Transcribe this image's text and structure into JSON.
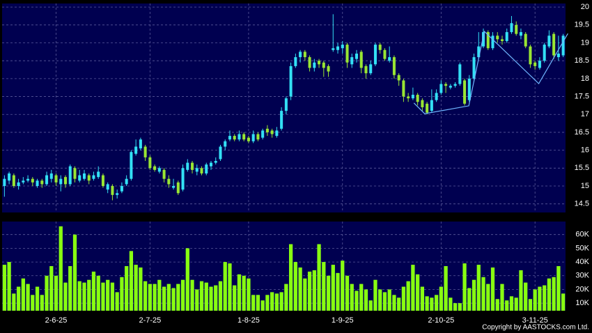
{
  "chart_data": [
    {
      "type": "candlestick",
      "open": [
        15.0,
        15.15,
        15.3,
        15.0,
        15.1,
        15.15,
        15.2,
        15.0,
        15.15,
        15.05,
        15.2,
        15.3,
        15.05,
        15.25,
        15.05,
        15.5,
        15.15,
        15.2,
        15.3,
        15.2,
        15.25,
        15.3,
        14.9,
        15.0,
        14.75,
        14.85,
        15.05,
        15.2,
        15.9,
        16.05,
        16.1,
        15.8,
        15.55,
        15.4,
        15.45,
        15.2,
        14.95,
        15.1,
        14.9,
        15.45,
        15.65,
        15.4,
        15.5,
        15.35,
        15.55,
        15.65,
        15.75,
        16.1,
        16.3,
        16.4,
        16.3,
        16.45,
        16.35,
        16.25,
        16.45,
        16.35,
        16.6,
        16.55,
        16.4,
        16.6,
        17.1,
        17.5,
        18.35,
        18.6,
        18.75,
        18.6,
        18.3,
        18.5,
        18.45,
        18.35,
        18.8,
        18.8,
        18.85,
        18.95,
        18.4,
        18.55,
        18.75,
        18.35,
        18.15,
        18.4,
        18.95,
        18.8,
        18.5,
        18.6,
        18.1,
        17.95,
        17.5,
        17.45,
        17.55,
        17.4,
        17.3,
        17.1,
        17.4,
        17.6,
        17.85,
        17.75,
        17.8,
        17.85,
        17.95,
        17.4,
        18.0,
        18.6,
        18.9,
        19.3,
        18.85,
        19.2,
        19.1,
        19.05,
        19.3,
        19.5,
        19.2,
        19.25,
        18.9,
        18.45,
        18.3,
        18.5,
        18.9,
        19.25,
        18.6,
        18.65
      ],
      "high": [
        15.3,
        15.4,
        15.35,
        15.2,
        15.25,
        15.3,
        15.25,
        15.2,
        15.2,
        15.4,
        15.45,
        15.35,
        15.3,
        15.3,
        15.6,
        15.55,
        15.45,
        15.45,
        15.35,
        15.4,
        15.55,
        15.35,
        15.1,
        15.05,
        14.9,
        15.1,
        15.3,
        16.0,
        16.3,
        16.35,
        16.15,
        15.85,
        15.6,
        15.55,
        15.5,
        15.3,
        15.2,
        15.15,
        15.6,
        15.75,
        15.7,
        15.6,
        15.55,
        15.65,
        15.7,
        15.8,
        16.15,
        16.3,
        16.55,
        16.45,
        16.55,
        16.5,
        16.4,
        16.55,
        16.5,
        16.6,
        16.7,
        16.6,
        16.65,
        17.2,
        17.5,
        18.45,
        18.7,
        18.8,
        18.8,
        18.65,
        18.55,
        18.55,
        18.5,
        18.4,
        19.8,
        19.0,
        19.05,
        19.0,
        18.7,
        18.8,
        18.8,
        18.4,
        18.5,
        19.0,
        19.0,
        18.85,
        18.9,
        18.65,
        18.15,
        18.0,
        17.6,
        17.75,
        17.6,
        17.45,
        17.35,
        17.7,
        17.7,
        17.95,
        17.9,
        17.85,
        17.9,
        18.45,
        18.0,
        18.1,
        18.7,
        19.3,
        19.4,
        19.35,
        19.3,
        19.3,
        19.2,
        19.4,
        19.75,
        19.6,
        19.4,
        19.3,
        18.95,
        18.5,
        18.6,
        19.0,
        19.35,
        19.3,
        19.2,
        19.25
      ],
      "low": [
        14.7,
        15.05,
        14.95,
        14.9,
        15.05,
        15.1,
        15.0,
        14.95,
        14.95,
        15.0,
        15.1,
        15.0,
        14.85,
        14.95,
        15.0,
        15.1,
        15.1,
        15.15,
        15.05,
        15.15,
        15.2,
        14.95,
        14.8,
        14.6,
        14.65,
        14.8,
        15.0,
        15.15,
        15.85,
        16.0,
        15.7,
        15.45,
        15.4,
        15.35,
        15.1,
        14.95,
        14.9,
        14.75,
        14.85,
        15.4,
        15.35,
        15.3,
        15.3,
        15.3,
        15.45,
        15.6,
        15.7,
        16.0,
        16.25,
        16.25,
        16.25,
        16.25,
        16.2,
        16.2,
        16.25,
        16.3,
        16.4,
        16.35,
        16.35,
        16.55,
        17.0,
        17.4,
        18.3,
        18.45,
        18.5,
        18.2,
        18.2,
        18.3,
        18.05,
        18.05,
        18.75,
        18.7,
        18.7,
        18.3,
        18.3,
        18.45,
        18.15,
        18.0,
        18.1,
        18.35,
        18.7,
        18.5,
        18.45,
        18.0,
        17.8,
        17.35,
        17.35,
        17.4,
        17.25,
        17.1,
        17.0,
        17.05,
        17.35,
        17.55,
        17.6,
        17.7,
        17.75,
        17.8,
        17.25,
        17.35,
        17.9,
        18.55,
        18.85,
        18.8,
        18.8,
        19.0,
        18.95,
        19.0,
        19.25,
        19.2,
        19.1,
        18.85,
        18.3,
        18.25,
        18.25,
        18.45,
        18.85,
        18.55,
        18.5,
        18.6
      ],
      "close": [
        15.2,
        15.35,
        15.0,
        15.1,
        15.15,
        15.2,
        15.1,
        15.15,
        15.05,
        15.3,
        15.35,
        15.1,
        15.2,
        15.05,
        15.55,
        15.2,
        15.3,
        15.35,
        15.15,
        15.3,
        15.4,
        15.0,
        15.05,
        14.75,
        14.8,
        15.0,
        15.2,
        15.95,
        16.1,
        16.3,
        15.8,
        15.5,
        15.45,
        15.5,
        15.2,
        15.05,
        15.0,
        14.8,
        15.5,
        15.65,
        15.45,
        15.5,
        15.35,
        15.6,
        15.65,
        15.7,
        16.1,
        16.25,
        16.4,
        16.3,
        16.45,
        16.3,
        16.25,
        16.45,
        16.3,
        16.55,
        16.5,
        16.45,
        16.55,
        17.1,
        17.45,
        18.35,
        18.6,
        18.75,
        18.6,
        18.3,
        18.45,
        18.4,
        18.3,
        18.2,
        18.85,
        18.9,
        18.95,
        18.45,
        18.6,
        18.7,
        18.3,
        18.15,
        18.4,
        18.95,
        18.8,
        18.55,
        18.6,
        18.1,
        17.95,
        17.5,
        17.45,
        17.55,
        17.35,
        17.2,
        17.05,
        17.4,
        17.6,
        17.85,
        17.8,
        17.8,
        17.85,
        18.4,
        17.3,
        18.0,
        18.6,
        18.9,
        19.3,
        18.85,
        19.2,
        19.1,
        19.05,
        19.3,
        19.55,
        19.25,
        19.3,
        18.9,
        18.4,
        18.35,
        18.5,
        18.95,
        19.2,
        18.65,
        18.7,
        19.2
      ],
      "up_color": "#33e0f5",
      "down_color": "#99e633",
      "overlay": {
        "x": [
          87.2,
          89.5,
          98.9,
          102.2,
          113.8,
          120.0
        ],
        "values": [
          17.32,
          17.02,
          17.24,
          19.32,
          17.86,
          19.26
        ],
        "color": "#6fb6ff"
      },
      "xlim": [
        -0.5,
        119.5
      ],
      "ylim": [
        14.26,
        20.1
      ],
      "yticks": [
        14.5,
        15,
        15.5,
        16,
        16.5,
        17,
        17.5,
        18,
        18.5,
        19,
        19.5,
        20
      ],
      "grid": true
    },
    {
      "type": "bar",
      "values": [
        38000,
        40000,
        17000,
        22000,
        28000,
        24000,
        16000,
        22000,
        16000,
        30000,
        37000,
        30000,
        66000,
        25000,
        37000,
        60000,
        26000,
        25000,
        27000,
        33000,
        30000,
        25000,
        27000,
        25000,
        18000,
        29000,
        37000,
        48000,
        38000,
        36000,
        26000,
        24000,
        24000,
        27000,
        22000,
        24000,
        21000,
        24000,
        27000,
        50000,
        27000,
        20000,
        26000,
        25000,
        22000,
        23000,
        26000,
        40000,
        39000,
        23000,
        31000,
        30000,
        28000,
        16000,
        16000,
        12000,
        16000,
        18000,
        17000,
        18000,
        24000,
        53000,
        40000,
        36000,
        28000,
        33000,
        34000,
        53000,
        40000,
        30000,
        38000,
        32000,
        41000,
        30000,
        24000,
        19000,
        24000,
        20000,
        12000,
        27000,
        20000,
        18000,
        20000,
        16000,
        14000,
        22000,
        26000,
        38000,
        31000,
        22000,
        15000,
        14000,
        16000,
        22000,
        37000,
        14000,
        10000,
        10000,
        39000,
        21000,
        27000,
        38000,
        29000,
        24000,
        36000,
        13000,
        24000,
        12000,
        15000,
        14000,
        34000,
        25000,
        13000,
        20000,
        22000,
        23000,
        28000,
        29000,
        37000,
        17000
      ],
      "color": "#88ff11",
      "xlim": [
        -0.5,
        119.5
      ],
      "xticks": [
        {
          "value": 11,
          "label": "2-6-25"
        },
        {
          "value": 31,
          "label": "2-7-25"
        },
        {
          "value": 52,
          "label": "1-8-25"
        },
        {
          "value": 72,
          "label": "1-9-25"
        },
        {
          "value": 93,
          "label": "2-10-25"
        },
        {
          "value": 113,
          "label": "3-11-25"
        }
      ],
      "ylim": [
        4500,
        69500
      ],
      "yticks": [
        {
          "value": 10000,
          "label": "10K"
        },
        {
          "value": 20000,
          "label": "20K"
        },
        {
          "value": 30000,
          "label": "30K"
        },
        {
          "value": 40000,
          "label": "40K"
        },
        {
          "value": 50000,
          "label": "50K"
        },
        {
          "value": 60000,
          "label": "60K"
        }
      ],
      "grid": true
    }
  ],
  "copyright": "Copyright by AASTOCKS.com Ltd."
}
